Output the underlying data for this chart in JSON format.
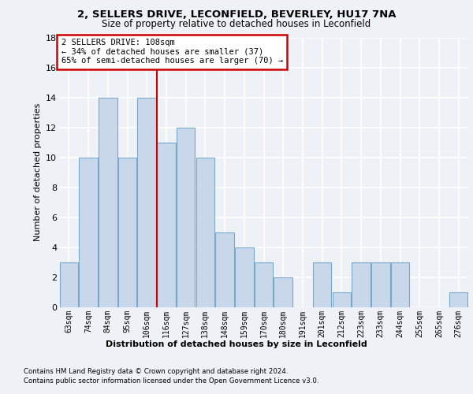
{
  "title_line1": "2, SELLERS DRIVE, LECONFIELD, BEVERLEY, HU17 7NA",
  "title_line2": "Size of property relative to detached houses in Leconfield",
  "xlabel": "Distribution of detached houses by size in Leconfield",
  "ylabel": "Number of detached properties",
  "categories": [
    "63sqm",
    "74sqm",
    "84sqm",
    "95sqm",
    "106sqm",
    "116sqm",
    "127sqm",
    "138sqm",
    "148sqm",
    "159sqm",
    "170sqm",
    "180sqm",
    "191sqm",
    "201sqm",
    "212sqm",
    "223sqm",
    "233sqm",
    "244sqm",
    "255sqm",
    "265sqm",
    "276sqm"
  ],
  "values": [
    3,
    10,
    14,
    10,
    14,
    11,
    12,
    10,
    5,
    4,
    3,
    2,
    0,
    3,
    1,
    3,
    3,
    3,
    0,
    0,
    1
  ],
  "bar_color": "#c8d8ea",
  "bar_edge_color": "#7aa8c8",
  "vline_x": 4.5,
  "vline_color": "#cc0000",
  "annotation_line1": "2 SELLERS DRIVE: 108sqm",
  "annotation_line2": "← 34% of detached houses are smaller (37)",
  "annotation_line3": "65% of semi-detached houses are larger (70) →",
  "annotation_box_color": "#ffffff",
  "annotation_box_edge": "#cc0000",
  "ylim": [
    0,
    18
  ],
  "yticks": [
    0,
    2,
    4,
    6,
    8,
    10,
    12,
    14,
    16,
    18
  ],
  "footer_line1": "Contains HM Land Registry data © Crown copyright and database right 2024.",
  "footer_line2": "Contains public sector information licensed under the Open Government Licence v3.0.",
  "background_color": "#eef2f7",
  "plot_background": "#eef2f7",
  "grid_color": "#ffffff"
}
